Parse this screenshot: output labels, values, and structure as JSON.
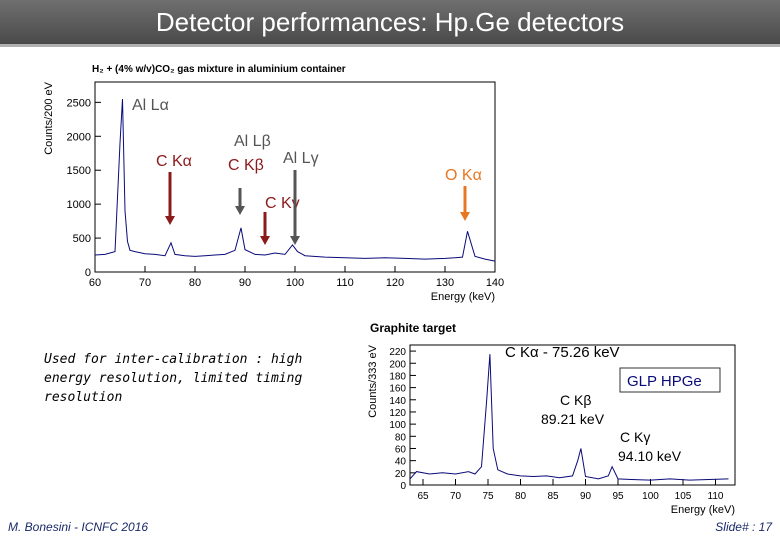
{
  "slide": {
    "title": "Detector performances: Hp.Ge detectors",
    "body_text": "Used for inter-calibration : high energy resolution, limited timing resolution",
    "footer_left": "M. Bonesini - ICNFC 2016",
    "footer_right": "Slide# : 17"
  },
  "chart_data": [
    {
      "type": "line",
      "title": "H₂ + (4% w/v)CO₂ gas mixture in aluminium container",
      "xlabel": "Energy (keV)",
      "ylabel": "Counts/200 eV",
      "xlim": [
        60,
        140
      ],
      "ylim": [
        0,
        2800
      ],
      "xticks": [
        60,
        70,
        80,
        90,
        100,
        110,
        120,
        130,
        140
      ],
      "yticks": [
        0,
        500,
        1000,
        1500,
        2000,
        2500
      ],
      "x": [
        60,
        62,
        64,
        65,
        65.5,
        66,
        66.5,
        67,
        68,
        70,
        72,
        74,
        75.2,
        76,
        78,
        80,
        82,
        84,
        86,
        88,
        89.2,
        90,
        92,
        94,
        96,
        98,
        99.5,
        100.5,
        102,
        106,
        110,
        114,
        118,
        122,
        126,
        130,
        132,
        133.5,
        134.5,
        136,
        138,
        140
      ],
      "y": [
        250,
        260,
        300,
        1900,
        2550,
        900,
        450,
        320,
        300,
        270,
        260,
        240,
        430,
        260,
        240,
        230,
        240,
        250,
        260,
        320,
        650,
        330,
        260,
        250,
        280,
        260,
        400,
        300,
        240,
        220,
        210,
        200,
        210,
        200,
        190,
        200,
        210,
        220,
        600,
        230,
        190,
        160
      ],
      "annotations": [
        {
          "label": "Al Lα",
          "x": 65,
          "color": "#555555"
        },
        {
          "label": "Al Lβ",
          "x": 89,
          "color": "#555555"
        },
        {
          "label": "Al Lγ",
          "x": 100,
          "color": "#555555"
        },
        {
          "label": "C Kα",
          "x": 75,
          "color": "#8b1a1a"
        },
        {
          "label": "C Kβ",
          "x": 89,
          "color": "#8b1a1a"
        },
        {
          "label": "C Kγ",
          "x": 94,
          "color": "#8b1a1a"
        },
        {
          "label": "O Kα",
          "x": 134,
          "color": "#e87722"
        }
      ]
    },
    {
      "type": "line",
      "title": "Graphite target",
      "xlabel": "Energy (keV)",
      "ylabel": "Counts/333 eV",
      "xlim": [
        63,
        113
      ],
      "ylim": [
        0,
        230
      ],
      "xticks": [
        65,
        70,
        75,
        80,
        85,
        90,
        95,
        100,
        105,
        110
      ],
      "yticks": [
        0,
        20,
        40,
        60,
        80,
        100,
        120,
        140,
        160,
        180,
        200,
        220
      ],
      "x": [
        63,
        64,
        66,
        68,
        70,
        72,
        73,
        74,
        74.8,
        75.3,
        75.8,
        76.5,
        78,
        80,
        82,
        84,
        86,
        88,
        88.8,
        89.3,
        90,
        92,
        93.5,
        94.1,
        95,
        97,
        100,
        103,
        106,
        109,
        112
      ],
      "y": [
        10,
        22,
        18,
        20,
        18,
        22,
        18,
        30,
        140,
        215,
        60,
        25,
        18,
        15,
        14,
        15,
        12,
        15,
        40,
        60,
        14,
        10,
        15,
        30,
        10,
        9,
        8,
        10,
        8,
        9,
        10
      ],
      "legend": "GLP HPGe",
      "annotations": [
        {
          "label": "C Kα - 75.26 keV",
          "x": 75.26
        },
        {
          "label": "C Kβ",
          "value_label": "89.21 keV",
          "x": 89.21
        },
        {
          "label": "C Kγ",
          "value_label": "94.10 keV",
          "x": 94.1
        }
      ]
    }
  ]
}
